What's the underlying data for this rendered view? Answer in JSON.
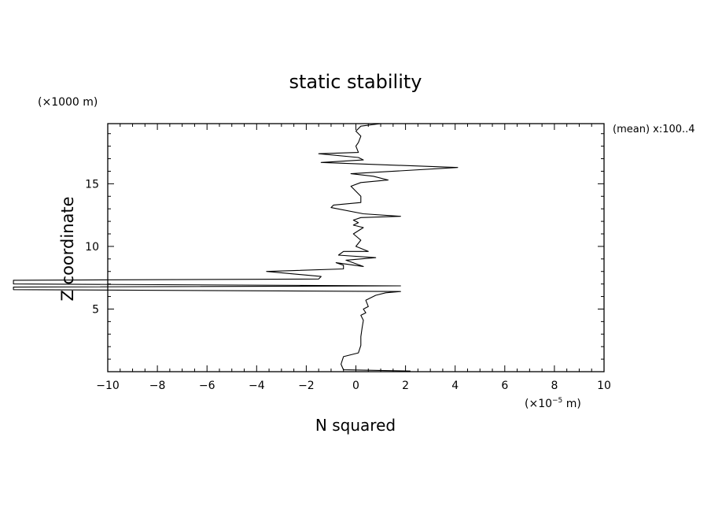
{
  "chart_data": {
    "type": "line",
    "title": "static stability",
    "xlabel": "N squared",
    "ylabel": "Z coordinate",
    "x_unit": "(×10",
    "x_unit_exp": "−5",
    "x_unit_tail": " m)",
    "y_unit": "(×1000 m)",
    "annotation": "(mean) x:100..4",
    "xlim": [
      -10,
      10
    ],
    "ylim": [
      0,
      19.8
    ],
    "xticks": [
      -10,
      -8,
      -6,
      -4,
      -2,
      0,
      2,
      4,
      6,
      8,
      10
    ],
    "xtick_labels": [
      "−10",
      "−8",
      "−6",
      "−4",
      "−2",
      "0",
      "2",
      "4",
      "6",
      "8",
      "10"
    ],
    "yticks": [
      5,
      10,
      15
    ],
    "ytick_labels": [
      "5",
      "10",
      "15"
    ],
    "grid": false,
    "series": [
      {
        "x": [
          2.2,
          -0.5,
          -0.6,
          -0.5,
          0.1,
          0.2,
          0.2,
          0.25,
          0.3,
          0.2,
          0.4,
          0.3,
          0.5,
          0.4,
          0.8,
          1.2,
          1.8,
          -13.8,
          -13.8,
          1.8,
          -13.8,
          -13.8,
          -1.5,
          -1.4,
          -3.6,
          -0.5,
          -0.5,
          -0.8,
          0.3,
          -0.4,
          0.8,
          -0.7,
          -0.5,
          0.5,
          0.0,
          0.2,
          -0.1,
          0.3,
          -0.1,
          0.1,
          -0.1,
          0.2,
          1.8,
          0.3,
          -1.0,
          -0.9,
          0.2,
          0.2,
          0.0,
          -0.2,
          0.2,
          1.3,
          0.7,
          -0.2,
          4.1,
          -1.4,
          0.3,
          0.1,
          -1.5,
          0.1,
          0.0,
          0.1,
          0.2,
          0.0,
          0.2,
          1.0
        ],
        "y": [
          0.05,
          0.15,
          0.6,
          1.2,
          1.5,
          2.1,
          2.8,
          3.5,
          4.1,
          4.5,
          4.7,
          5.0,
          5.2,
          5.7,
          6.1,
          6.3,
          6.4,
          6.55,
          6.75,
          6.85,
          7.0,
          7.3,
          7.4,
          7.6,
          8.0,
          8.2,
          8.5,
          8.7,
          8.4,
          8.9,
          9.1,
          9.3,
          9.6,
          9.6,
          10.0,
          10.5,
          11.0,
          11.5,
          11.7,
          11.9,
          12.1,
          12.3,
          12.4,
          12.6,
          13.1,
          13.3,
          13.5,
          14.0,
          14.4,
          14.8,
          15.1,
          15.3,
          15.6,
          15.8,
          16.3,
          16.7,
          16.9,
          17.1,
          17.4,
          17.5,
          18.0,
          18.3,
          18.8,
          19.2,
          19.6,
          19.8
        ]
      }
    ]
  }
}
